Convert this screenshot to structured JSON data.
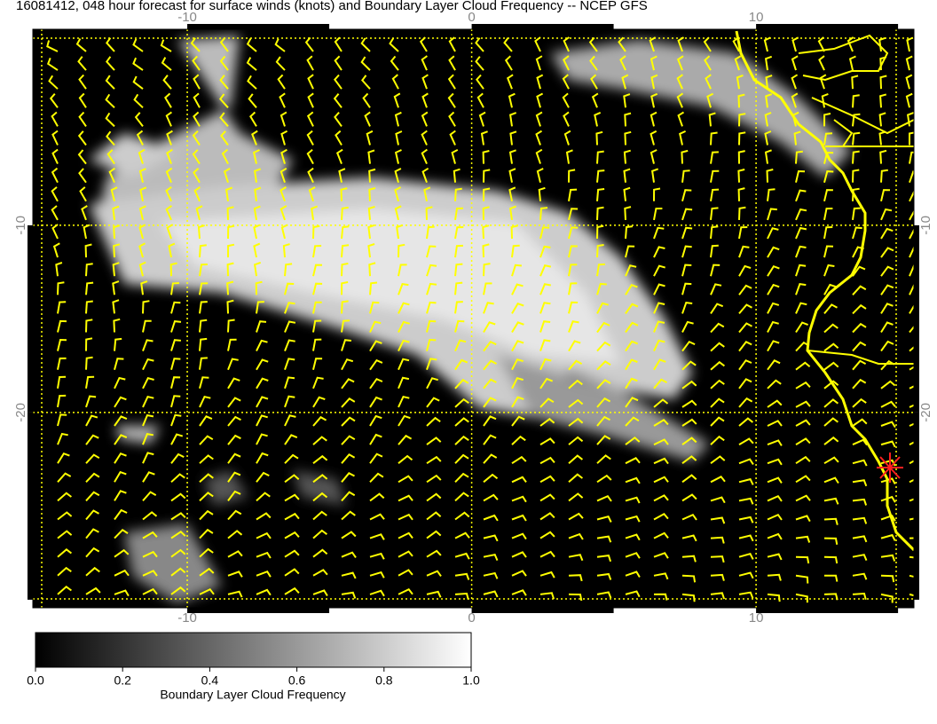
{
  "title": "16081412, 048 hour forecast for surface winds (knots) and Boundary Layer Cloud Frequency -- NCEP GFS",
  "map": {
    "xlim": [
      -15.43,
      15.55
    ],
    "ylim": [
      -30.43,
      0.47
    ],
    "xticks": [
      -10,
      0,
      10
    ],
    "yticks": [
      -10,
      -20
    ]
  },
  "colorbar": {
    "label": "Boundary Layer Cloud Frequency",
    "lim": [
      0,
      1
    ],
    "ticks": [
      {
        "value": 0,
        "label": "0.0"
      },
      0.2,
      0.4,
      0.6,
      0.8,
      {
        "value": 1,
        "label": "1.0"
      }
    ]
  }
}
